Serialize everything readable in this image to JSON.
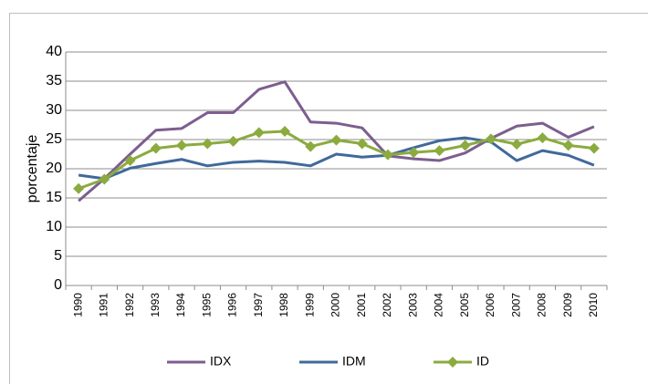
{
  "chart_data": {
    "type": "line",
    "y_label": "porcentaje",
    "categories": [
      "1990",
      "1991",
      "1992",
      "1993",
      "1994",
      "1995",
      "1996",
      "1997",
      "1998",
      "1999",
      "2000",
      "2001",
      "2002",
      "2003",
      "2004",
      "2005",
      "2006",
      "2007",
      "2008",
      "2009",
      "2010"
    ],
    "series": [
      {
        "name": "IDX",
        "color": "#7d5e8f",
        "values": [
          14.5,
          18.3,
          22.5,
          26.6,
          26.9,
          29.6,
          29.6,
          33.6,
          34.9,
          28.0,
          27.8,
          27.0,
          22.2,
          21.7,
          21.4,
          22.7,
          25.2,
          27.3,
          27.8,
          25.4,
          27.2
        ]
      },
      {
        "name": "IDM",
        "color": "#40699a",
        "values": [
          18.9,
          18.3,
          20.1,
          20.9,
          21.6,
          20.5,
          21.1,
          21.3,
          21.1,
          20.5,
          22.5,
          22.0,
          22.3,
          23.6,
          24.8,
          25.3,
          24.6,
          21.4,
          23.1,
          22.3,
          20.6
        ],
        "marker": "none"
      },
      {
        "name": "ID",
        "color": "#8bab3f",
        "values": [
          16.6,
          18.2,
          21.4,
          23.5,
          24.0,
          24.3,
          24.7,
          26.2,
          26.4,
          23.8,
          24.9,
          24.3,
          22.4,
          22.8,
          23.1,
          24.0,
          25.1,
          24.2,
          25.3,
          24.0,
          23.5
        ],
        "marker": "diamond"
      }
    ],
    "ylim": [
      0,
      40
    ],
    "yticks": [
      0,
      5,
      10,
      15,
      20,
      25,
      30,
      35,
      40
    ],
    "grid": true,
    "legend": "bottom"
  }
}
